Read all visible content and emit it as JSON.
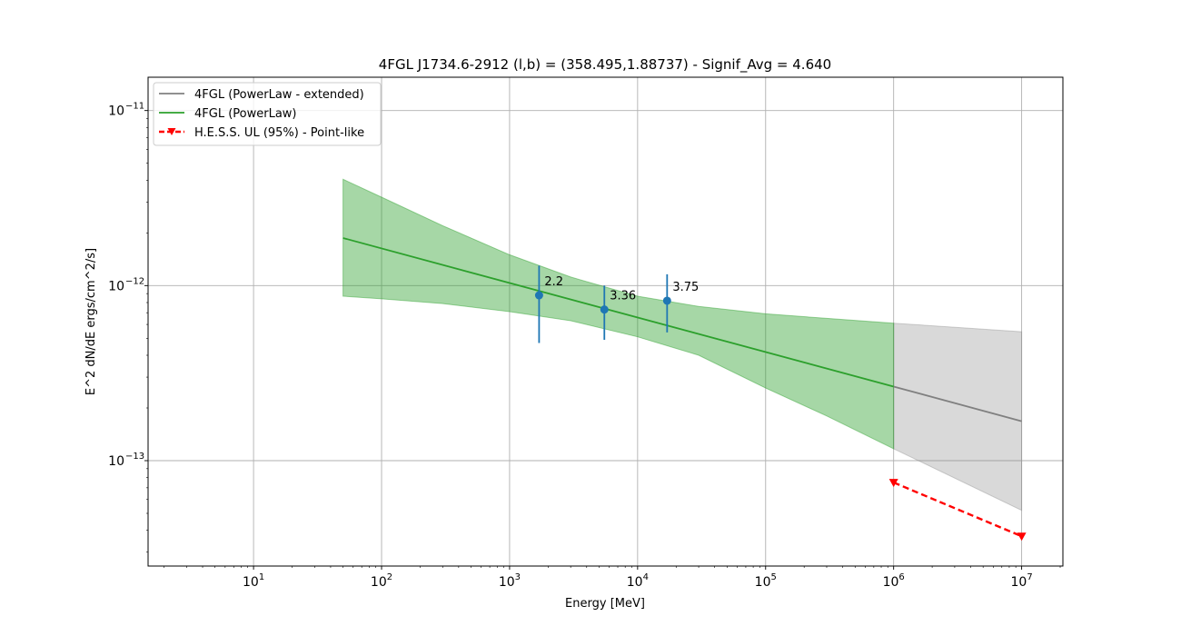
{
  "chart_data": {
    "type": "line",
    "title": "4FGL J1734.6-2912  (l,b) = (358.495,1.88737) - Signif_Avg = 4.640",
    "xlabel": "Energy [MeV]",
    "ylabel": "E^2 dN/dE ergs/cm^2/s]",
    "xscale": "log",
    "yscale": "log",
    "xlim": [
      1.5,
      21000000
    ],
    "ylim": [
      2.5e-14,
      1.55e-11
    ],
    "grid": true,
    "legend_position": "top-left",
    "x_ticks": [
      {
        "value": 10,
        "base": "10",
        "exp": "1"
      },
      {
        "value": 100,
        "base": "10",
        "exp": "2"
      },
      {
        "value": 1000,
        "base": "10",
        "exp": "3"
      },
      {
        "value": 10000,
        "base": "10",
        "exp": "4"
      },
      {
        "value": 100000,
        "base": "10",
        "exp": "5"
      },
      {
        "value": 1000000,
        "base": "10",
        "exp": "6"
      },
      {
        "value": 10000000,
        "base": "10",
        "exp": "7"
      }
    ],
    "y_ticks": [
      {
        "value": 1e-13,
        "base": "10",
        "exp": "−13"
      },
      {
        "value": 1e-12,
        "base": "10",
        "exp": "−12"
      },
      {
        "value": 1e-11,
        "base": "10",
        "exp": "−11"
      }
    ],
    "series": [
      {
        "name": "4FGL (PowerLaw - extended)",
        "color": "#808080",
        "x": [
          1000000,
          10000000
        ],
        "y": [
          2.65e-13,
          1.68e-13
        ],
        "band_upper": [
          6.1e-13,
          5.45e-13
        ],
        "band_lower": [
          1.17e-13,
          5.2e-14
        ]
      },
      {
        "name": "4FGL (PowerLaw)",
        "color": "#2ca02c",
        "x": [
          50,
          1000000
        ],
        "y": [
          1.87e-12,
          2.65e-13
        ],
        "band_x": [
          50,
          100,
          300,
          1000,
          3000,
          10000,
          30000,
          100000,
          300000,
          1000000
        ],
        "band_upper": [
          4.05e-12,
          3.2e-12,
          2.2e-12,
          1.5e-12,
          1.12e-12,
          8.7e-13,
          7.6e-13,
          6.9e-13,
          6.5e-13,
          6.1e-13
        ],
        "band_lower": [
          8.7e-13,
          8.4e-13,
          7.9e-13,
          7.1e-13,
          6.3e-13,
          5.1e-13,
          4e-13,
          2.6e-13,
          1.8e-13,
          1.17e-13
        ]
      },
      {
        "name": "H.E.S.S. UL (95%) - Point-like",
        "color": "#ff0000",
        "style": "dashed",
        "marker": "triangle-down",
        "x": [
          1000000,
          10000000
        ],
        "y": [
          7.5e-14,
          3.7e-14
        ]
      }
    ],
    "points": {
      "color": "#1f77b4",
      "x": [
        1700,
        5500,
        17000
      ],
      "y": [
        8.8e-13,
        7.3e-13,
        8.2e-13
      ],
      "err_low": [
        4.7e-13,
        4.9e-13,
        5.4e-13
      ],
      "err_high": [
        1.3e-12,
        1e-12,
        1.16e-12
      ],
      "labels": [
        "2.2",
        "3.36",
        "3.75"
      ]
    }
  }
}
